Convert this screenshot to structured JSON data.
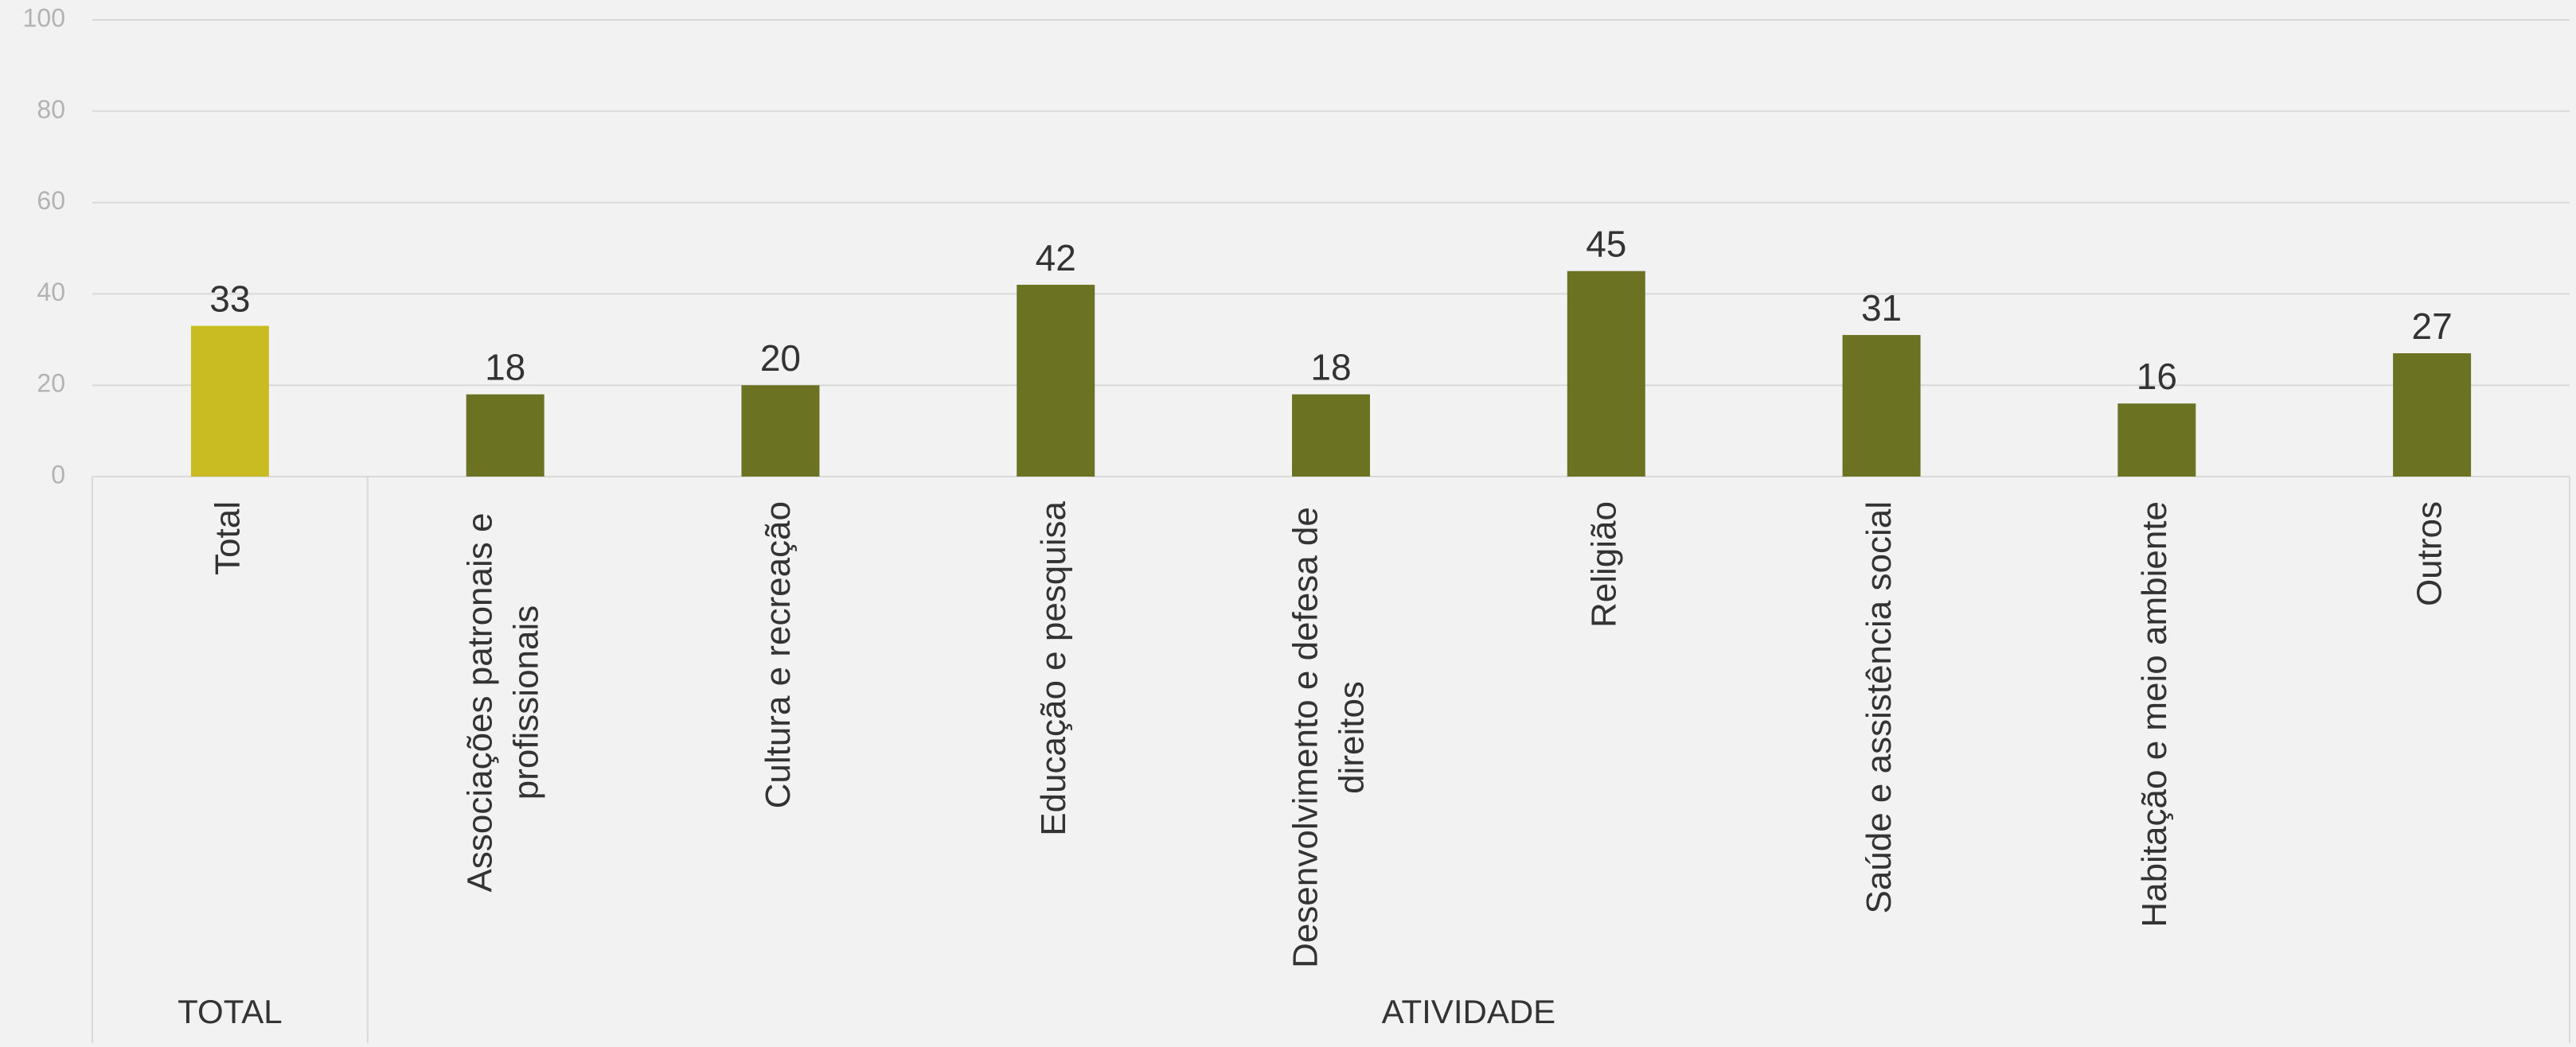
{
  "chart_data": {
    "type": "bar",
    "categories": [
      "Total",
      "Associações patronais e profissionais",
      "Cultura e recreação",
      "Educação e pesquisa",
      "Desenvolvimento e defesa de direitos",
      "Religião",
      "Saúde e assistência social",
      "Habitação e meio ambiente",
      "Outros"
    ],
    "category_lines": [
      [
        "Total"
      ],
      [
        "Associações patronais e",
        "profissionais"
      ],
      [
        "Cultura e recreação"
      ],
      [
        "Educação e pesquisa"
      ],
      [
        "Desenvolvimento e defesa de",
        "direitos"
      ],
      [
        "Religião"
      ],
      [
        "Saúde e assistência social"
      ],
      [
        "Habitação e meio ambiente"
      ],
      [
        "Outros"
      ]
    ],
    "values": [
      33,
      18,
      20,
      42,
      18,
      45,
      31,
      16,
      27
    ],
    "value_labels": [
      "33",
      "18",
      "20",
      "42",
      "18",
      "45",
      "31",
      "16",
      "27"
    ],
    "groups": [
      {
        "label": "TOTAL",
        "count": 1
      },
      {
        "label": "ATIVIDADE",
        "count": 8
      }
    ],
    "ylim": [
      0,
      100
    ],
    "yticks": [
      0,
      20,
      40,
      60,
      80,
      100
    ],
    "ytick_labels": [
      "0",
      "20",
      "40",
      "60",
      "80",
      "100"
    ],
    "grid": true,
    "colors": {
      "total_bar": "#c9bb22",
      "activity_bar": "#6b7323",
      "gridline": "#d9d9d9",
      "axis_text": "#b3b3b3",
      "label_text": "#333333",
      "background": "#f2f2f2"
    }
  }
}
